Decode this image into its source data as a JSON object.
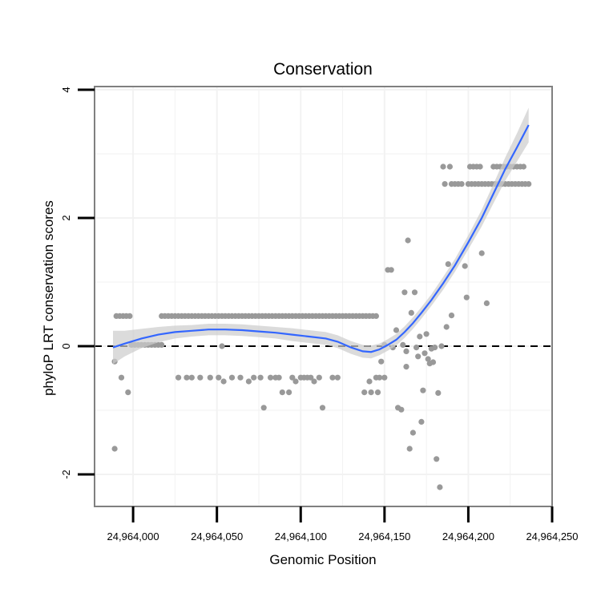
{
  "chart_data": {
    "type": "scatter",
    "title": "Conservation",
    "xlabel": "Genomic Position",
    "ylabel": "phyloP LRT conservation scores",
    "xlim": [
      24963977,
      24964250
    ],
    "ylim": [
      -2.5,
      4.05
    ],
    "x_ticks": [
      24964000,
      24964050,
      24964100,
      24964150,
      24964200,
      24964250
    ],
    "x_tick_labels": [
      "24,964,000",
      "24,964,050",
      "24,964,100",
      "24,964,150",
      "24,964,200",
      "24,964,250"
    ],
    "y_ticks": [
      -2,
      0,
      2,
      4
    ],
    "y_tick_labels": [
      "-2",
      "0",
      "2",
      "4"
    ],
    "reference_line": {
      "y": 0,
      "style": "dashed"
    },
    "grid": true,
    "colors": {
      "points": "#999999",
      "smooth_line": "#3366ff",
      "ribbon": "#cccccc",
      "panel_border": "#808080",
      "grid": "#f2f2f2"
    },
    "series": [
      {
        "name": "scores",
        "kind": "points",
        "points": [
          [
            24963989,
            -1.6
          ],
          [
            24963989,
            -0.24
          ],
          [
            24963990,
            0.47
          ],
          [
            24963992,
            0.47
          ],
          [
            24963993,
            -0.49
          ],
          [
            24963994,
            0.47
          ],
          [
            24963996,
            0.47
          ],
          [
            24963997,
            -0.72
          ],
          [
            24963998,
            0.47
          ],
          [
            24963999,
            0.02
          ],
          [
            24964001,
            0.02
          ],
          [
            24964003,
            0.02
          ],
          [
            24964005,
            0.02
          ],
          [
            24964007,
            0.02
          ],
          [
            24964009,
            0.02
          ],
          [
            24964011,
            0.02
          ],
          [
            24964013,
            0.02
          ],
          [
            24964015,
            0.02
          ],
          [
            24964017,
            0.02
          ],
          [
            24964017,
            0.47
          ],
          [
            24964019,
            0.47
          ],
          [
            24964021,
            0.47
          ],
          [
            24964023,
            0.47
          ],
          [
            24964025,
            0.47
          ],
          [
            24964027,
            0.47
          ],
          [
            24964029,
            0.47
          ],
          [
            24964031,
            0.47
          ],
          [
            24964033,
            0.47
          ],
          [
            24964035,
            0.47
          ],
          [
            24964037,
            0.47
          ],
          [
            24964039,
            0.47
          ],
          [
            24964041,
            0.47
          ],
          [
            24964043,
            0.47
          ],
          [
            24964045,
            0.47
          ],
          [
            24964047,
            0.47
          ],
          [
            24964049,
            0.47
          ],
          [
            24964051,
            0.47
          ],
          [
            24964053,
            0.47
          ],
          [
            24964055,
            0.47
          ],
          [
            24964057,
            0.47
          ],
          [
            24964059,
            0.47
          ],
          [
            24964061,
            0.47
          ],
          [
            24964063,
            0.47
          ],
          [
            24964065,
            0.47
          ],
          [
            24964067,
            0.47
          ],
          [
            24964069,
            0.47
          ],
          [
            24964071,
            0.47
          ],
          [
            24964073,
            0.47
          ],
          [
            24964075,
            0.47
          ],
          [
            24964077,
            0.47
          ],
          [
            24964079,
            0.47
          ],
          [
            24964081,
            0.47
          ],
          [
            24964083,
            0.47
          ],
          [
            24964085,
            0.47
          ],
          [
            24964087,
            0.47
          ],
          [
            24964089,
            0.47
          ],
          [
            24964091,
            0.47
          ],
          [
            24964093,
            0.47
          ],
          [
            24964095,
            0.47
          ],
          [
            24964097,
            0.47
          ],
          [
            24964099,
            0.47
          ],
          [
            24964101,
            0.47
          ],
          [
            24964103,
            0.47
          ],
          [
            24964105,
            0.47
          ],
          [
            24964107,
            0.47
          ],
          [
            24964109,
            0.47
          ],
          [
            24964111,
            0.47
          ],
          [
            24964113,
            0.47
          ],
          [
            24964115,
            0.47
          ],
          [
            24964117,
            0.47
          ],
          [
            24964119,
            0.47
          ],
          [
            24964121,
            0.47
          ],
          [
            24964123,
            0.47
          ],
          [
            24964125,
            0.47
          ],
          [
            24964127,
            0.47
          ],
          [
            24964129,
            0.47
          ],
          [
            24964131,
            0.47
          ],
          [
            24964133,
            0.47
          ],
          [
            24964135,
            0.47
          ],
          [
            24964137,
            0.47
          ],
          [
            24964139,
            0.47
          ],
          [
            24964141,
            0.47
          ],
          [
            24964143,
            0.47
          ],
          [
            24964145,
            0.47
          ],
          [
            24964027,
            -0.49
          ],
          [
            24964032,
            -0.49
          ],
          [
            24964035,
            -0.49
          ],
          [
            24964040,
            -0.49
          ],
          [
            24964046,
            -0.49
          ],
          [
            24964051,
            -0.49
          ],
          [
            24964053,
            0.0
          ],
          [
            24964054,
            -0.55
          ],
          [
            24964059,
            -0.49
          ],
          [
            24964064,
            -0.49
          ],
          [
            24964069,
            -0.55
          ],
          [
            24964072,
            -0.49
          ],
          [
            24964076,
            -0.49
          ],
          [
            24964078,
            -0.96
          ],
          [
            24964082,
            -0.49
          ],
          [
            24964085,
            -0.49
          ],
          [
            24964087,
            -0.49
          ],
          [
            24964089,
            -0.72
          ],
          [
            24964093,
            -0.72
          ],
          [
            24964095,
            -0.49
          ],
          [
            24964097,
            -0.55
          ],
          [
            24964100,
            -0.49
          ],
          [
            24964102,
            -0.49
          ],
          [
            24964104,
            -0.49
          ],
          [
            24964106,
            -0.49
          ],
          [
            24964108,
            -0.55
          ],
          [
            24964111,
            -0.49
          ],
          [
            24964113,
            -0.96
          ],
          [
            24964119,
            -0.49
          ],
          [
            24964122,
            -0.49
          ],
          [
            24964138,
            -0.72
          ],
          [
            24964141,
            -0.55
          ],
          [
            24964142,
            -0.72
          ],
          [
            24964145,
            -0.49
          ],
          [
            24964146,
            -0.72
          ],
          [
            24964147,
            -0.49
          ],
          [
            24964148,
            -0.24
          ],
          [
            24964150,
            -0.49
          ],
          [
            24964150,
            0.02
          ],
          [
            24964152,
            1.19
          ],
          [
            24964154,
            1.19
          ],
          [
            24964155,
            -0.02
          ],
          [
            24964157,
            0.25
          ],
          [
            24964158,
            -0.96
          ],
          [
            24964160,
            -0.99
          ],
          [
            24964161,
            0.02
          ],
          [
            24964162,
            0.84
          ],
          [
            24964163,
            -0.08
          ],
          [
            24964163,
            -0.32
          ],
          [
            24964164,
            1.65
          ],
          [
            24964165,
            -1.6
          ],
          [
            24964166,
            0.52
          ],
          [
            24964167,
            -1.35
          ],
          [
            24964168,
            0.84
          ],
          [
            24964169,
            -0.02
          ],
          [
            24964170,
            -0.16
          ],
          [
            24964171,
            0.15
          ],
          [
            24964172,
            -1.18
          ],
          [
            24964173,
            -0.69
          ],
          [
            24964174,
            -0.11
          ],
          [
            24964175,
            0.19
          ],
          [
            24964176,
            -0.2
          ],
          [
            24964177,
            -0.27
          ],
          [
            24964178,
            -0.04
          ],
          [
            24964179,
            -0.25
          ],
          [
            24964180,
            -0.02
          ],
          [
            24964181,
            -1.76
          ],
          [
            24964182,
            -0.73
          ],
          [
            24964183,
            -2.2
          ],
          [
            24964184,
            0.0
          ],
          [
            24964185,
            2.8
          ],
          [
            24964186,
            2.53
          ],
          [
            24964187,
            0.3
          ],
          [
            24964188,
            1.28
          ],
          [
            24964189,
            2.8
          ],
          [
            24964190,
            0.48
          ],
          [
            24964190,
            2.53
          ],
          [
            24964192,
            2.53
          ],
          [
            24964194,
            2.53
          ],
          [
            24964196,
            2.53
          ],
          [
            24964198,
            1.25
          ],
          [
            24964199,
            0.76
          ],
          [
            24964200,
            2.53
          ],
          [
            24964201,
            2.8
          ],
          [
            24964202,
            2.53
          ],
          [
            24964203,
            2.8
          ],
          [
            24964204,
            2.53
          ],
          [
            24964205,
            2.8
          ],
          [
            24964206,
            2.53
          ],
          [
            24964207,
            2.8
          ],
          [
            24964208,
            2.53
          ],
          [
            24964208,
            1.45
          ],
          [
            24964210,
            2.53
          ],
          [
            24964211,
            0.67
          ],
          [
            24964212,
            2.53
          ],
          [
            24964214,
            2.53
          ],
          [
            24964215,
            2.8
          ],
          [
            24964216,
            2.53
          ],
          [
            24964217,
            2.8
          ],
          [
            24964218,
            2.53
          ],
          [
            24964219,
            2.8
          ],
          [
            24964220,
            2.53
          ],
          [
            24964221,
            2.8
          ],
          [
            24964222,
            2.53
          ],
          [
            24964223,
            2.8
          ],
          [
            24964224,
            2.53
          ],
          [
            24964225,
            2.8
          ],
          [
            24964226,
            2.53
          ],
          [
            24964227,
            2.8
          ],
          [
            24964228,
            2.53
          ],
          [
            24964229,
            2.8
          ],
          [
            24964230,
            2.53
          ],
          [
            24964231,
            2.8
          ],
          [
            24964232,
            2.53
          ],
          [
            24964233,
            2.8
          ],
          [
            24964234,
            2.53
          ],
          [
            24964236,
            2.53
          ]
        ]
      },
      {
        "name": "smoothed fit",
        "kind": "line",
        "points": [
          [
            24963988,
            -0.02
          ],
          [
            24963995,
            0.04
          ],
          [
            24964005,
            0.12
          ],
          [
            24964015,
            0.18
          ],
          [
            24964025,
            0.22
          ],
          [
            24964035,
            0.24
          ],
          [
            24964045,
            0.26
          ],
          [
            24964055,
            0.26
          ],
          [
            24964065,
            0.25
          ],
          [
            24964075,
            0.23
          ],
          [
            24964085,
            0.21
          ],
          [
            24964095,
            0.18
          ],
          [
            24964105,
            0.15
          ],
          [
            24964115,
            0.12
          ],
          [
            24964122,
            0.07
          ],
          [
            24964130,
            -0.02
          ],
          [
            24964137,
            -0.08
          ],
          [
            24964142,
            -0.09
          ],
          [
            24964147,
            -0.05
          ],
          [
            24964152,
            0.02
          ],
          [
            24964157,
            0.1
          ],
          [
            24964162,
            0.22
          ],
          [
            24964167,
            0.36
          ],
          [
            24964172,
            0.52
          ],
          [
            24964178,
            0.72
          ],
          [
            24964185,
            0.98
          ],
          [
            24964192,
            1.26
          ],
          [
            24964200,
            1.62
          ],
          [
            24964208,
            2.0
          ],
          [
            24964215,
            2.38
          ],
          [
            24964222,
            2.76
          ],
          [
            24964229,
            3.1
          ],
          [
            24964236,
            3.45
          ]
        ],
        "ribbon_halfwidth": [
          0.26,
          0.2,
          0.15,
          0.12,
          0.1,
          0.09,
          0.09,
          0.09,
          0.09,
          0.09,
          0.09,
          0.1,
          0.1,
          0.1,
          0.1,
          0.1,
          0.1,
          0.1,
          0.09,
          0.09,
          0.09,
          0.09,
          0.09,
          0.09,
          0.09,
          0.1,
          0.1,
          0.11,
          0.13,
          0.15,
          0.18,
          0.22,
          0.27
        ]
      }
    ]
  }
}
